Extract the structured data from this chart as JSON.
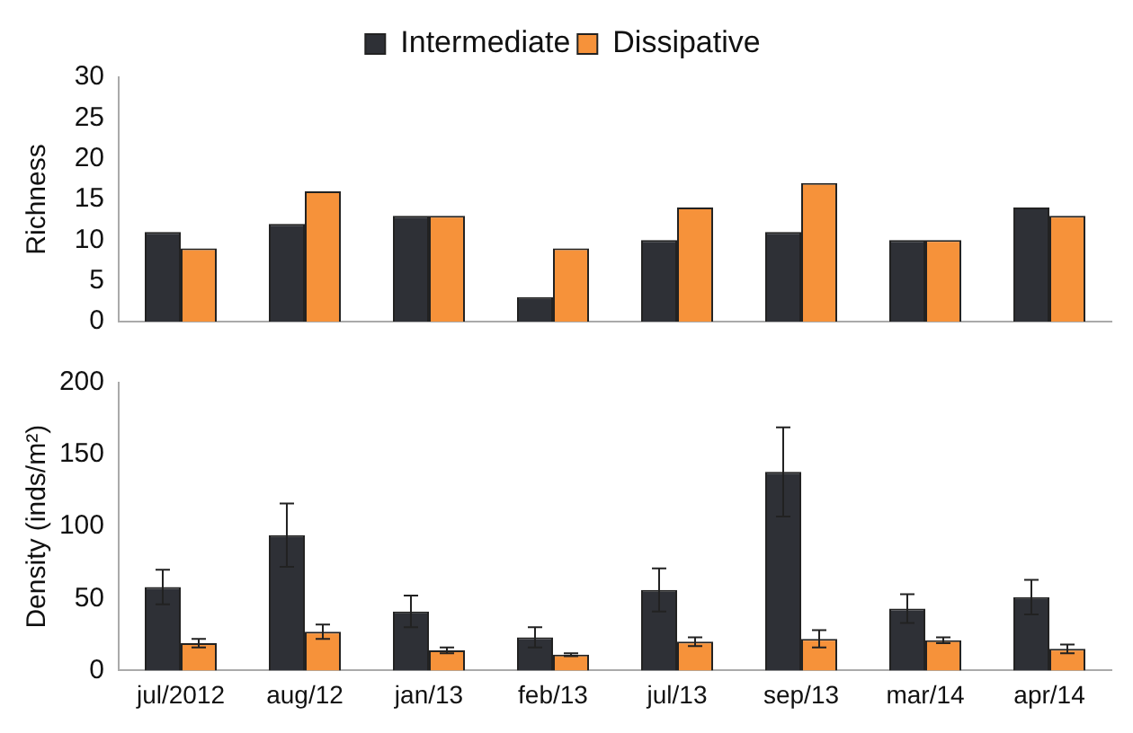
{
  "chart_data": [
    {
      "type": "bar",
      "ylabel": "Richness",
      "categories": [
        null,
        null,
        null,
        null,
        null,
        null,
        null,
        null
      ],
      "series": [
        {
          "name": "Intermediate",
          "color": "#2e3036",
          "values": [
            11,
            12,
            13,
            3,
            10,
            11,
            10,
            14
          ]
        },
        {
          "name": "Dissipative",
          "color": "#f6923a",
          "values": [
            9,
            16,
            13,
            9,
            14,
            17,
            10,
            13
          ]
        }
      ],
      "ylim": [
        0,
        30
      ],
      "yticks": [
        0,
        5,
        10,
        15,
        20,
        25,
        30
      ],
      "grid": false,
      "legend": "top",
      "tick_labels": "y"
    },
    {
      "type": "bar",
      "ylabel": "Density (inds/m²)",
      "categories": [
        "jul/2012",
        "aug/12",
        "jan/13",
        "feb/13",
        "jul/13",
        "sep/13",
        "mar/14",
        "apr/14"
      ],
      "series": [
        {
          "color": "#2e3036",
          "values": [
            58,
            94,
            41,
            23,
            56,
            138,
            43,
            51
          ],
          "errors": [
            12,
            22,
            11,
            7,
            15,
            31,
            10,
            12
          ]
        },
        {
          "color": "#f6923a",
          "values": [
            19,
            27,
            14,
            11,
            20,
            22,
            21,
            15
          ],
          "errors": [
            3,
            5,
            2,
            1,
            3,
            6,
            2,
            3
          ]
        }
      ],
      "ylim": [
        0,
        200
      ],
      "yticks": [
        0,
        50,
        100,
        150,
        200
      ],
      "grid": false,
      "legend": false
    }
  ]
}
